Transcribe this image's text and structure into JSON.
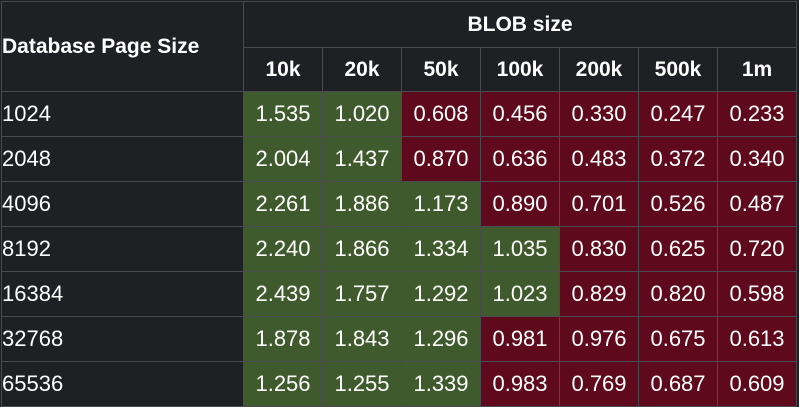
{
  "chart_data": {
    "type": "table",
    "row_header_label": "Database Page Size",
    "column_group_label": "BLOB size",
    "columns": [
      "10k",
      "20k",
      "50k",
      "100k",
      "200k",
      "500k",
      "1m"
    ],
    "rows": [
      {
        "label": "1024",
        "values": [
          "1.535",
          "1.020",
          "0.608",
          "0.456",
          "0.330",
          "0.247",
          "0.233"
        ]
      },
      {
        "label": "2048",
        "values": [
          "2.004",
          "1.437",
          "0.870",
          "0.636",
          "0.483",
          "0.372",
          "0.340"
        ]
      },
      {
        "label": "4096",
        "values": [
          "2.261",
          "1.886",
          "1.173",
          "0.890",
          "0.701",
          "0.526",
          "0.487"
        ]
      },
      {
        "label": "8192",
        "values": [
          "2.240",
          "1.866",
          "1.334",
          "1.035",
          "0.830",
          "0.625",
          "0.720"
        ]
      },
      {
        "label": "16384",
        "values": [
          "2.439",
          "1.757",
          "1.292",
          "1.023",
          "0.829",
          "0.820",
          "0.598"
        ]
      },
      {
        "label": "32768",
        "values": [
          "1.878",
          "1.843",
          "1.296",
          "0.981",
          "0.976",
          "0.675",
          "0.613"
        ]
      },
      {
        "label": "65536",
        "values": [
          "1.256",
          "1.255",
          "1.339",
          "0.983",
          "0.769",
          "0.687",
          "0.609"
        ]
      }
    ],
    "colors": {
      "background": "#1f2023",
      "border": "#4a4b50",
      "above_one": "#3f5a2c",
      "below_one": "#5e0a1c",
      "text": "#ffffff"
    }
  }
}
